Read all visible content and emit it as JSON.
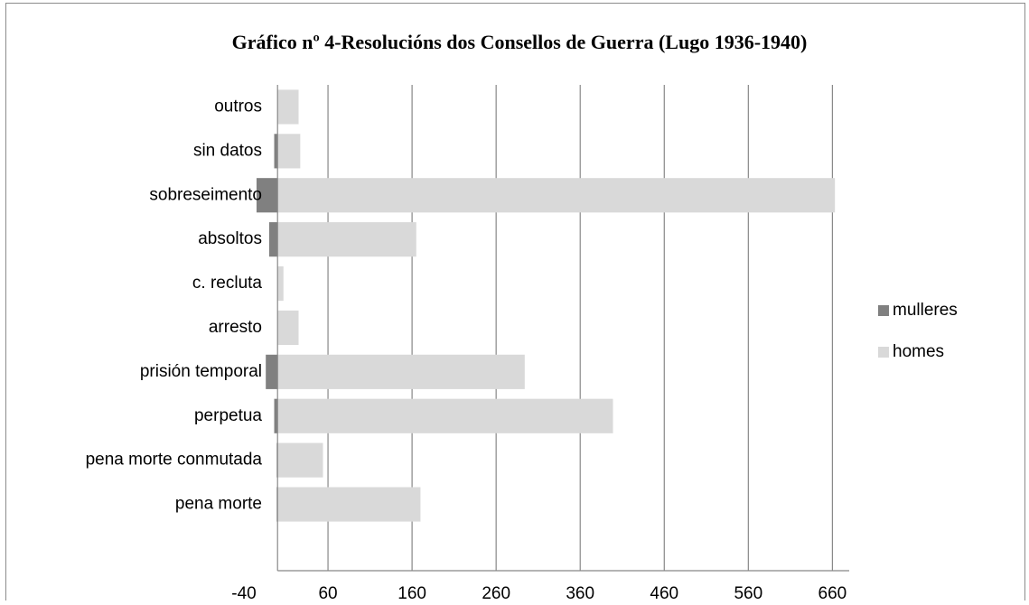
{
  "chart_data": {
    "type": "bar",
    "orientation": "horizontal",
    "title": "Gráfico nº 4-Resolucións dos Consellos de Guerra (Lugo 1936-1940)",
    "categories": [
      "outros",
      "sin datos",
      "sobreseimento",
      "absoltos",
      "c. recluta",
      "arresto",
      "prisión temporal",
      "perpetua",
      "pena morte conmutada",
      "pena morte"
    ],
    "series": [
      {
        "name": "mulleres",
        "color": "#808080",
        "values": [
          0,
          -4,
          -25,
          -10,
          0,
          0,
          -14,
          -4,
          -1,
          -1
        ]
      },
      {
        "name": "homes",
        "color": "#d9d9d9",
        "values": [
          25,
          27,
          663,
          165,
          7,
          25,
          294,
          399,
          54,
          170
        ]
      }
    ],
    "xlim": [
      -40,
      680
    ],
    "xticks": [
      -40,
      60,
      160,
      260,
      360,
      460,
      560,
      660
    ],
    "grid": true,
    "legend": "right"
  }
}
